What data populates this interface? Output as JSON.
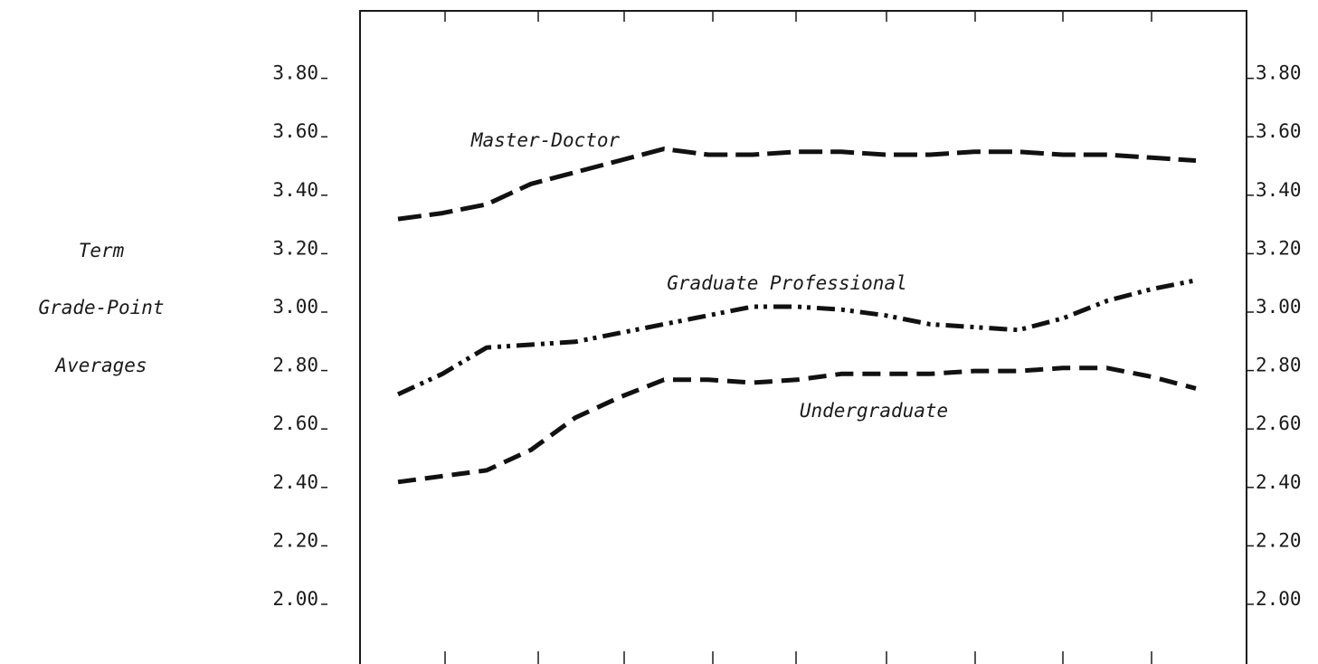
{
  "chart_data": {
    "type": "line",
    "title": "",
    "xlabel": "",
    "ylabel_lines": [
      "Term",
      "Grade-Point",
      "Averages"
    ],
    "ylim": [
      1.8,
      4.0
    ],
    "y_ticks": [
      "2.00",
      "2.20",
      "2.40",
      "2.60",
      "2.80",
      "3.00",
      "3.20",
      "3.40",
      "3.60",
      "3.80"
    ],
    "x_tick_count": 9,
    "x": [
      0,
      0.5,
      1,
      1.5,
      2,
      2.5,
      3,
      3.5,
      4,
      4.5,
      5,
      5.5,
      6,
      6.5,
      7,
      7.5,
      8,
      8.5,
      9
    ],
    "series": [
      {
        "name": "Master-Doctor",
        "style": "long-dash",
        "values": [
          3.3,
          3.32,
          3.35,
          3.42,
          3.46,
          3.5,
          3.54,
          3.52,
          3.52,
          3.53,
          3.53,
          3.52,
          3.52,
          3.53,
          3.53,
          3.52,
          3.52,
          3.51,
          3.5
        ]
      },
      {
        "name": "Graduate Professional",
        "style": "dash-dot-dot",
        "values": [
          2.7,
          2.77,
          2.86,
          2.87,
          2.88,
          2.91,
          2.94,
          2.97,
          3.0,
          3.0,
          2.99,
          2.97,
          2.94,
          2.93,
          2.92,
          2.96,
          3.02,
          3.06,
          3.09
        ]
      },
      {
        "name": "Undergraduate",
        "style": "dash",
        "values": [
          2.4,
          2.42,
          2.44,
          2.51,
          2.62,
          2.69,
          2.75,
          2.75,
          2.74,
          2.75,
          2.77,
          2.77,
          2.77,
          2.78,
          2.78,
          2.79,
          2.79,
          2.76,
          2.72
        ]
      }
    ],
    "line_color": "#111111",
    "line_width": 5
  }
}
